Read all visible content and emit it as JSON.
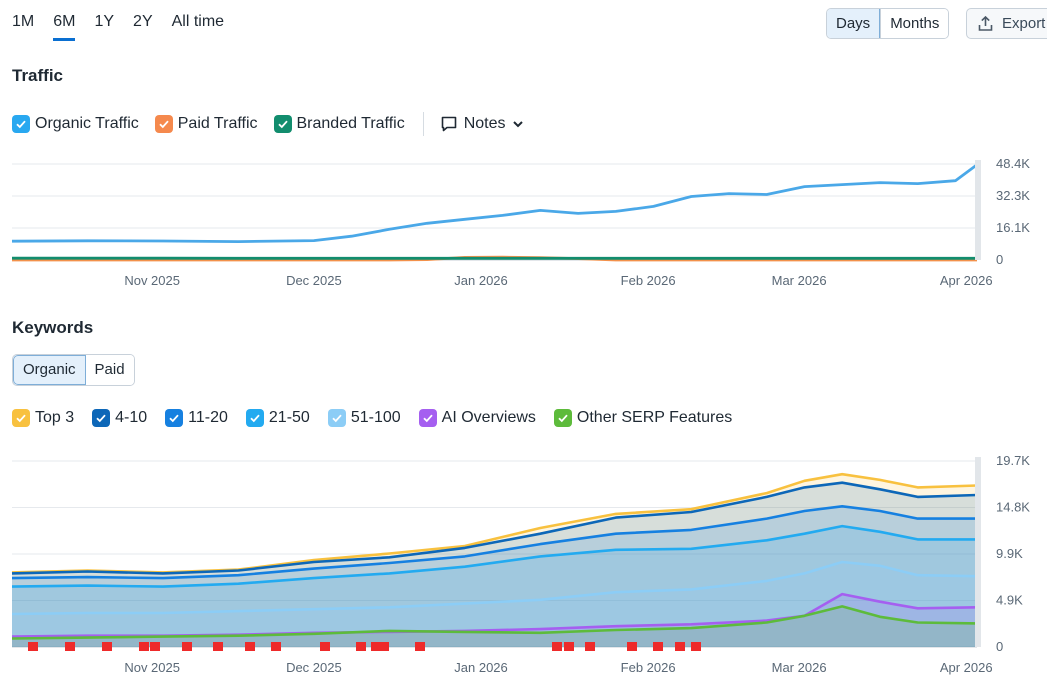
{
  "periods": [
    {
      "label": "1M",
      "active": false
    },
    {
      "label": "6M",
      "active": true
    },
    {
      "label": "1Y",
      "active": false
    },
    {
      "label": "2Y",
      "active": false
    },
    {
      "label": "All time",
      "active": false
    }
  ],
  "granularity": {
    "days_label": "Days",
    "months_label": "Months",
    "selected": "Days"
  },
  "export_label": "Export",
  "traffic": {
    "title": "Traffic",
    "legend": [
      {
        "label": "Organic Traffic",
        "color": "#29a8f0",
        "checked": true
      },
      {
        "label": "Paid Traffic",
        "color": "#f5894d",
        "checked": true
      },
      {
        "label": "Branded Traffic",
        "color": "#128d6e",
        "checked": true
      }
    ],
    "notes_label": "Notes"
  },
  "keywords": {
    "title": "Keywords",
    "tabs": [
      {
        "label": "Organic",
        "active": true
      },
      {
        "label": "Paid",
        "active": false
      }
    ],
    "legend": [
      {
        "label": "Top 3",
        "color": "#f8c13f",
        "checked": true
      },
      {
        "label": "4-10",
        "color": "#0d67b8",
        "checked": true
      },
      {
        "label": "11-20",
        "color": "#1680e0",
        "checked": true
      },
      {
        "label": "21-50",
        "color": "#23aaf0",
        "checked": true
      },
      {
        "label": "51-100",
        "color": "#8ccdf6",
        "checked": true
      },
      {
        "label": "AI Overviews",
        "color": "#a55ff0",
        "checked": true
      },
      {
        "label": "Other SERP Features",
        "color": "#5dbb3b",
        "checked": true
      }
    ]
  },
  "chart_data": [
    {
      "type": "line",
      "title": "Traffic",
      "x_tick_labels": [
        "Nov 2025",
        "Dec 2025",
        "Jan 2026",
        "Feb 2026",
        "Mar 2026",
        "Apr 2026"
      ],
      "y_tick_labels": [
        "0",
        "16.1K",
        "32.3K",
        "48.4K"
      ],
      "ylim": [
        0,
        48400
      ],
      "x": [
        "2025-10-06",
        "2025-10-20",
        "2025-11-03",
        "2025-11-17",
        "2025-12-01",
        "2025-12-08",
        "2025-12-15",
        "2025-12-22",
        "2025-12-29",
        "2026-01-05",
        "2026-01-12",
        "2026-01-19",
        "2026-01-26",
        "2026-02-02",
        "2026-02-09",
        "2026-02-16",
        "2026-02-23",
        "2026-03-02",
        "2026-03-09",
        "2026-03-16",
        "2026-03-23",
        "2026-03-30",
        "2026-04-03"
      ],
      "series": [
        {
          "name": "Organic Traffic",
          "color": "#4aa8e8",
          "values": [
            9500,
            9700,
            9600,
            9300,
            9800,
            12000,
            15500,
            18500,
            20500,
            22500,
            25000,
            23500,
            24500,
            27000,
            32000,
            33500,
            33000,
            37000,
            38000,
            39000,
            38500,
            40000,
            48000
          ]
        },
        {
          "name": "Paid Traffic",
          "color": "#f3914b",
          "values": [
            0,
            0,
            0,
            0,
            0,
            0,
            0,
            200,
            1300,
            1400,
            1200,
            700,
            0,
            0,
            0,
            0,
            0,
            0,
            0,
            0,
            0,
            0,
            0
          ]
        },
        {
          "name": "Branded Traffic",
          "color": "#128d6e",
          "values": [
            900,
            900,
            900,
            850,
            850,
            850,
            850,
            850,
            850,
            850,
            850,
            850,
            850,
            850,
            850,
            850,
            850,
            850,
            850,
            850,
            850,
            850,
            850
          ]
        }
      ]
    },
    {
      "type": "area",
      "title": "Keywords",
      "x_tick_labels": [
        "Nov 2025",
        "Dec 2025",
        "Jan 2026",
        "Feb 2026",
        "Mar 2026",
        "Apr 2026"
      ],
      "y_tick_labels": [
        "0",
        "4.9K",
        "9.9K",
        "14.8K",
        "19.7K"
      ],
      "ylim": [
        0,
        19700
      ],
      "x": [
        "2025-10-06",
        "2025-10-20",
        "2025-11-03",
        "2025-11-17",
        "2025-12-01",
        "2025-12-15",
        "2025-12-29",
        "2026-01-12",
        "2026-01-26",
        "2026-02-09",
        "2026-02-23",
        "2026-03-02",
        "2026-03-09",
        "2026-03-16",
        "2026-03-23",
        "2026-04-03"
      ],
      "series": [
        {
          "name": "Top 3",
          "color": "#f8c13f",
          "values": [
            7900,
            8100,
            7900,
            8200,
            9200,
            9900,
            10700,
            12600,
            14100,
            14600,
            16300,
            17600,
            18300,
            17700,
            16900,
            17100
          ]
        },
        {
          "name": "4-10",
          "color": "#0d67b8",
          "values": [
            7800,
            8000,
            7800,
            8100,
            9000,
            9500,
            10500,
            12000,
            13700,
            14300,
            15900,
            16900,
            17400,
            16700,
            15900,
            16100
          ]
        },
        {
          "name": "11-20",
          "color": "#1680e0",
          "values": [
            7300,
            7400,
            7300,
            7600,
            8300,
            8900,
            9600,
            10900,
            12000,
            12400,
            13600,
            14400,
            14900,
            14400,
            13600,
            13600
          ]
        },
        {
          "name": "21-50",
          "color": "#23aaf0",
          "values": [
            6400,
            6500,
            6400,
            6700,
            7300,
            7800,
            8500,
            9600,
            10300,
            10400,
            11300,
            12000,
            12800,
            12200,
            11400,
            11400
          ]
        },
        {
          "name": "51-100",
          "color": "#8ccdf6",
          "values": [
            3500,
            3600,
            3600,
            3800,
            4000,
            4200,
            4600,
            5000,
            5800,
            6100,
            7000,
            7800,
            9000,
            8600,
            7600,
            7500
          ]
        },
        {
          "name": "AI Overviews",
          "color": "#a55ff0",
          "values": [
            1100,
            1200,
            1200,
            1300,
            1500,
            1600,
            1700,
            1900,
            2200,
            2400,
            2800,
            3300,
            5600,
            4800,
            4100,
            4200
          ]
        },
        {
          "name": "Other SERP Features",
          "color": "#5dbb3b",
          "values": [
            900,
            1000,
            1100,
            1200,
            1400,
            1700,
            1600,
            1500,
            1800,
            2000,
            2600,
            3300,
            4300,
            3200,
            2600,
            2500
          ]
        }
      ]
    }
  ]
}
